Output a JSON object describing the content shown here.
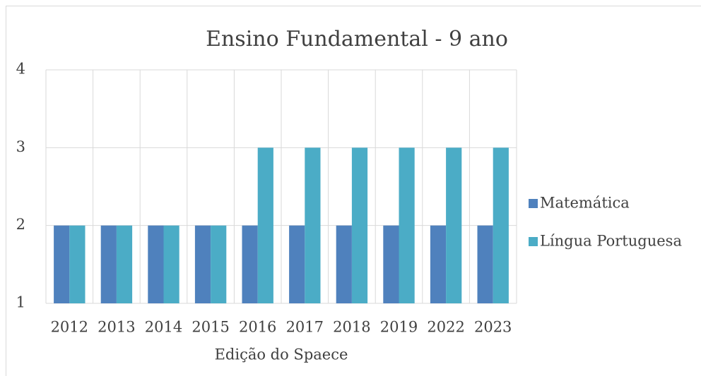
{
  "chart_data": {
    "type": "bar",
    "title": "Ensino Fundamental - 9 ano",
    "x_label": "Edição do Spaece",
    "categories": [
      "2012",
      "2013",
      "2014",
      "2015",
      "2016",
      "2017",
      "2018",
      "2019",
      "2022",
      "2023"
    ],
    "series": [
      {
        "name": "Matemática",
        "color": "#4f81bd",
        "values": [
          2,
          2,
          2,
          2,
          2,
          2,
          2,
          2,
          2,
          2
        ]
      },
      {
        "name": "Língua Portuguesa",
        "color": "#4bacc6",
        "values": [
          2,
          2,
          2,
          2,
          3,
          3,
          3,
          3,
          3,
          3
        ]
      }
    ],
    "ylim": [
      1,
      4
    ],
    "yticks": [
      1,
      2,
      3,
      4
    ],
    "grid": true,
    "legend": "right"
  }
}
